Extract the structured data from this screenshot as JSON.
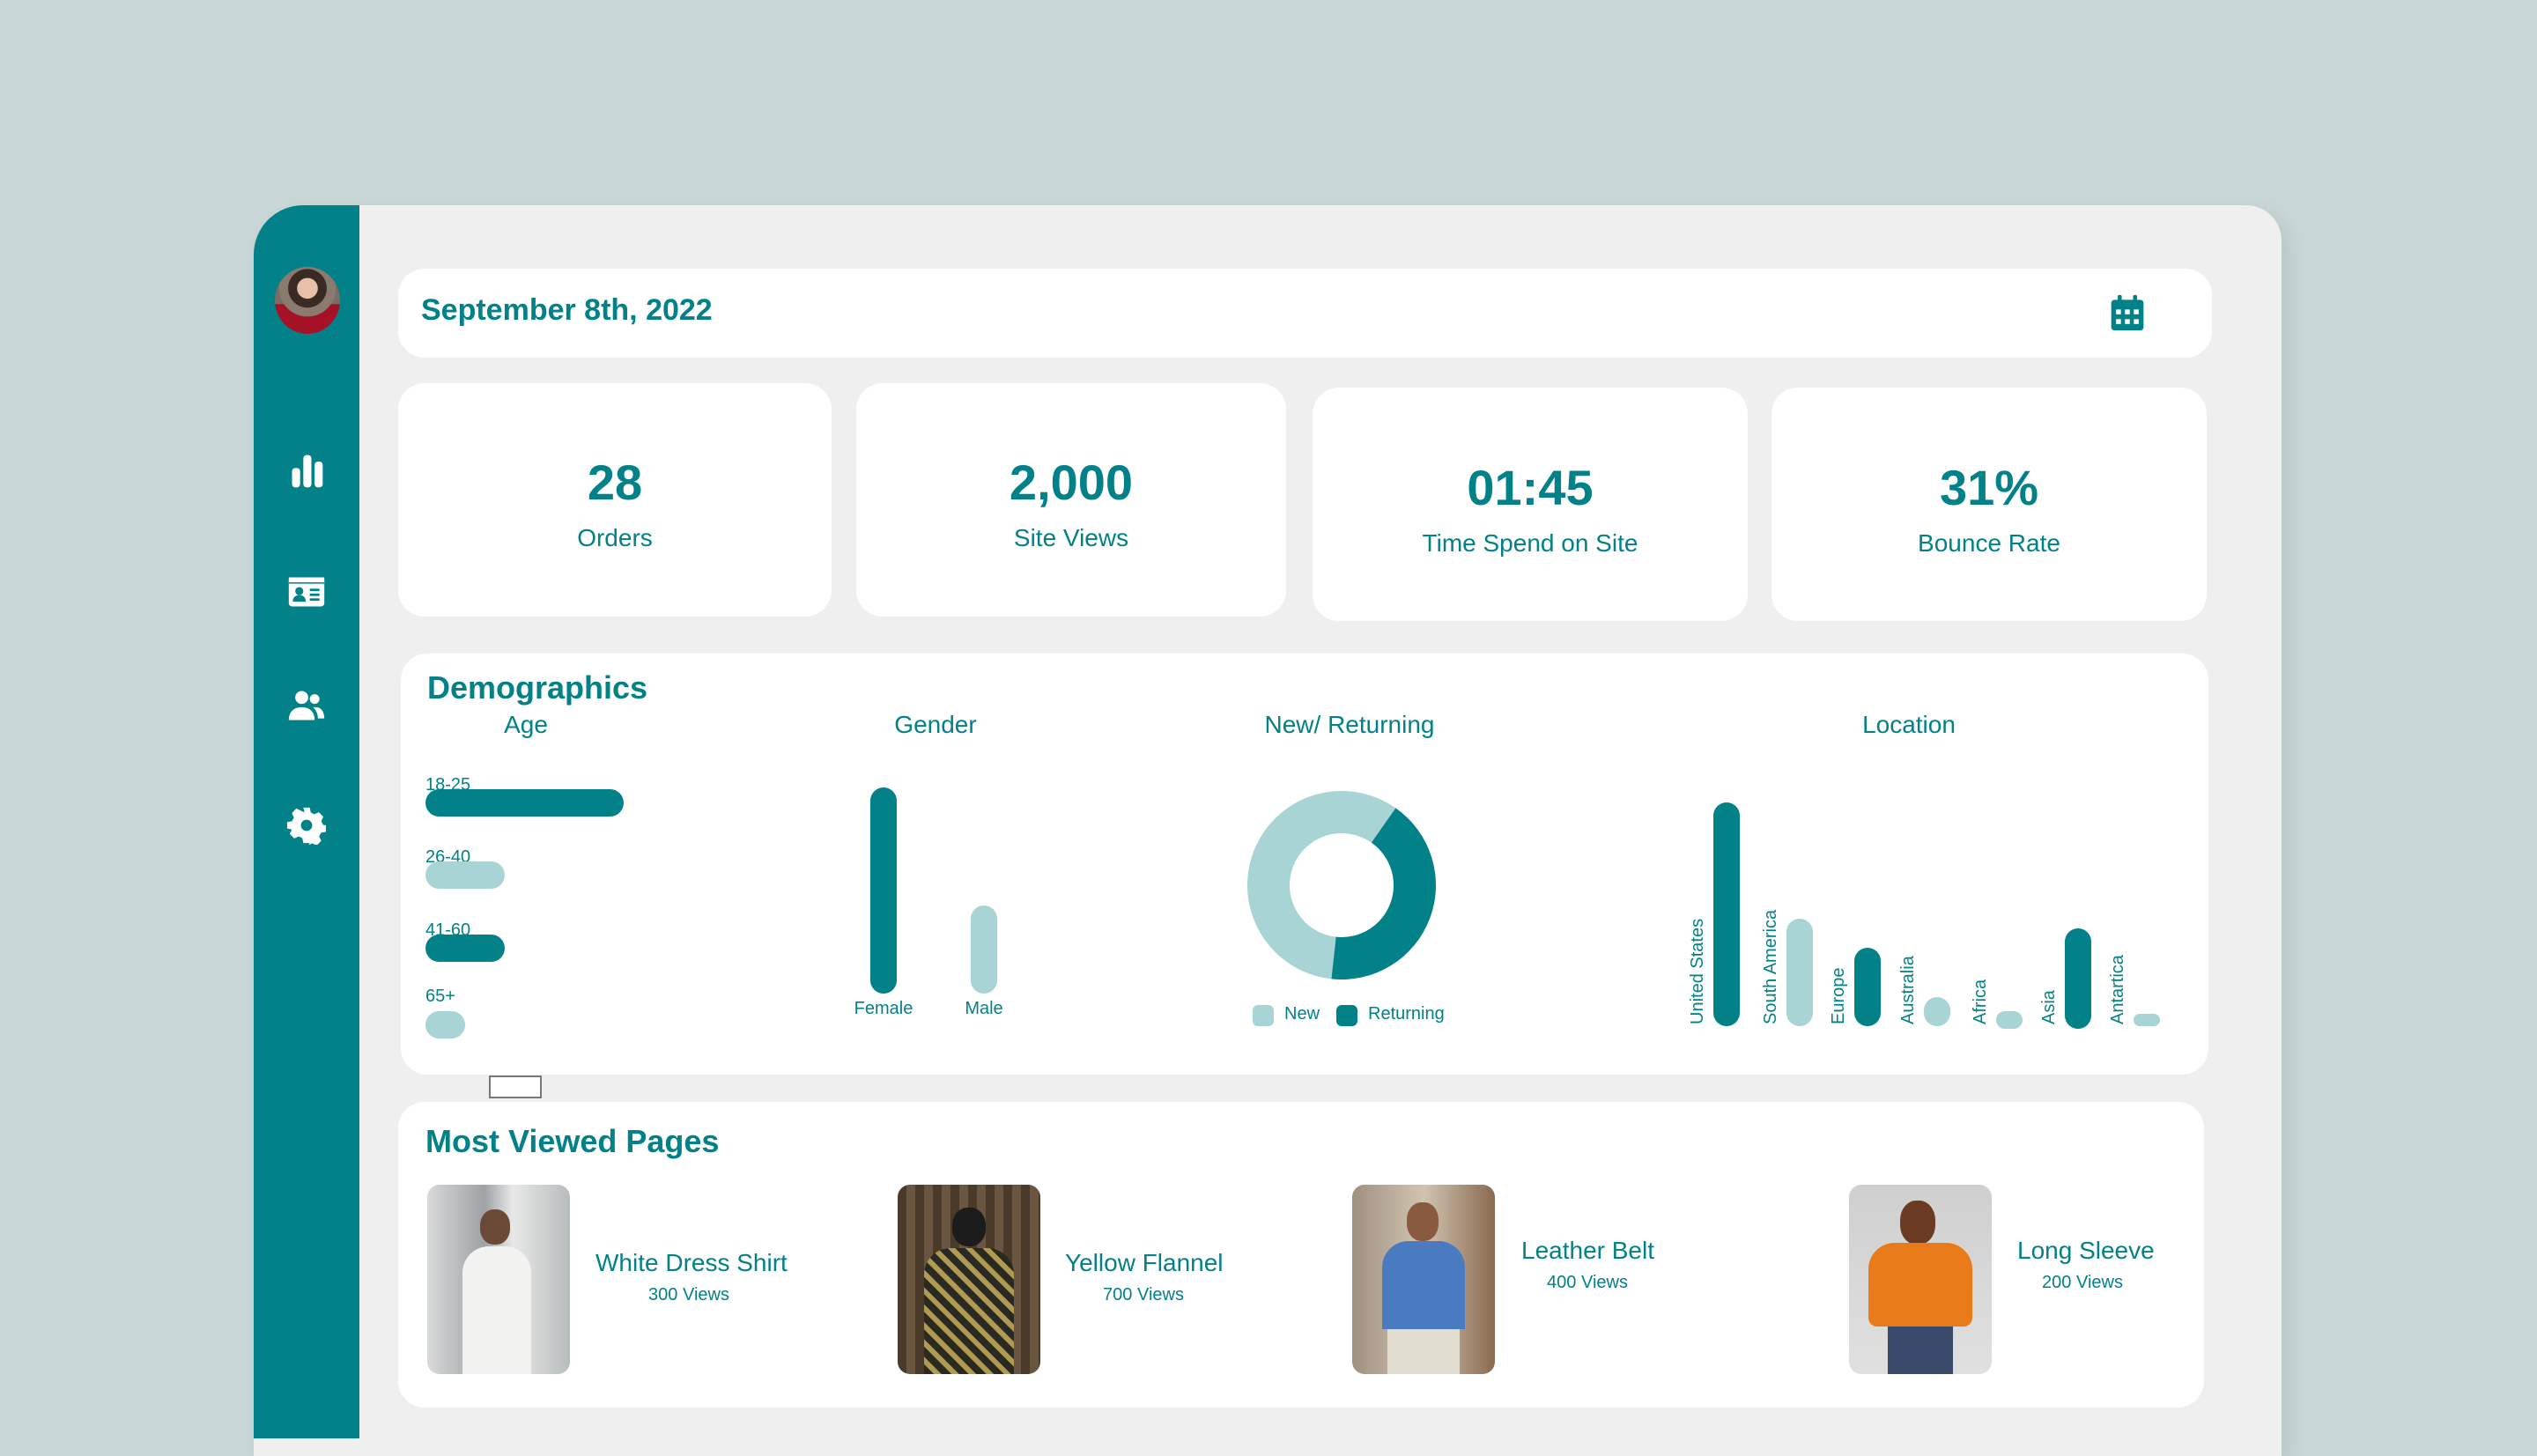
{
  "header": {
    "date": "September 8th, 2022",
    "calendar_icon": "calendar-icon"
  },
  "sidebar": {
    "items": [
      {
        "name": "analytics",
        "icon": "bar-chart-icon"
      },
      {
        "name": "contacts",
        "icon": "id-card-icon"
      },
      {
        "name": "users",
        "icon": "users-icon"
      },
      {
        "name": "settings",
        "icon": "gear-icon"
      }
    ]
  },
  "stats": [
    {
      "value": "28",
      "label": "Orders"
    },
    {
      "value": "2,000",
      "label": "Site Views"
    },
    {
      "value": "01:45",
      "label": "Time Spend on Site"
    },
    {
      "value": "31%",
      "label": "Bounce Rate"
    }
  ],
  "demographics": {
    "title": "Demographics"
  },
  "colors": {
    "primary": "#028188",
    "light": "#a8d4d6",
    "background": "#c8d6d7",
    "panel": "#efefef"
  },
  "chart_data": [
    {
      "type": "bar",
      "orientation": "horizontal",
      "title": "Age",
      "categories": [
        "18-25",
        "26-40",
        "41-60",
        "65+"
      ],
      "values": [
        50,
        20,
        20,
        10
      ],
      "colors": [
        "#028188",
        "#a8d4d6",
        "#028188",
        "#a8d4d6"
      ]
    },
    {
      "type": "bar",
      "title": "Gender",
      "categories": [
        "Female",
        "Male"
      ],
      "values": [
        70,
        30
      ],
      "colors": [
        "#028188",
        "#a8d4d6"
      ]
    },
    {
      "type": "pie",
      "title": "New/ Returning",
      "categories": [
        "New",
        "Returning"
      ],
      "values": [
        58,
        42
      ],
      "colors": [
        "#a8d4d6",
        "#028188"
      ],
      "legend": "bottom"
    },
    {
      "type": "bar",
      "title": "Location",
      "categories": [
        "United States",
        "South America",
        "Europe",
        "Australia",
        "Africa",
        "Asia",
        "Antartica"
      ],
      "values": [
        100,
        48,
        35,
        13,
        8,
        45,
        3
      ],
      "colors": [
        "#028188",
        "#a8d4d6",
        "#028188",
        "#a8d4d6",
        "#a8d4d6",
        "#028188",
        "#a8d4d6"
      ]
    }
  ],
  "most_viewed": {
    "title": "Most Viewed Pages",
    "items": [
      {
        "name": "White Dress Shirt",
        "views": "300 Views"
      },
      {
        "name": "Yellow Flannel",
        "views": "700 Views"
      },
      {
        "name": "Leather Belt",
        "views": "400 Views"
      },
      {
        "name": "Long Sleeve",
        "views": "200 Views"
      }
    ]
  }
}
